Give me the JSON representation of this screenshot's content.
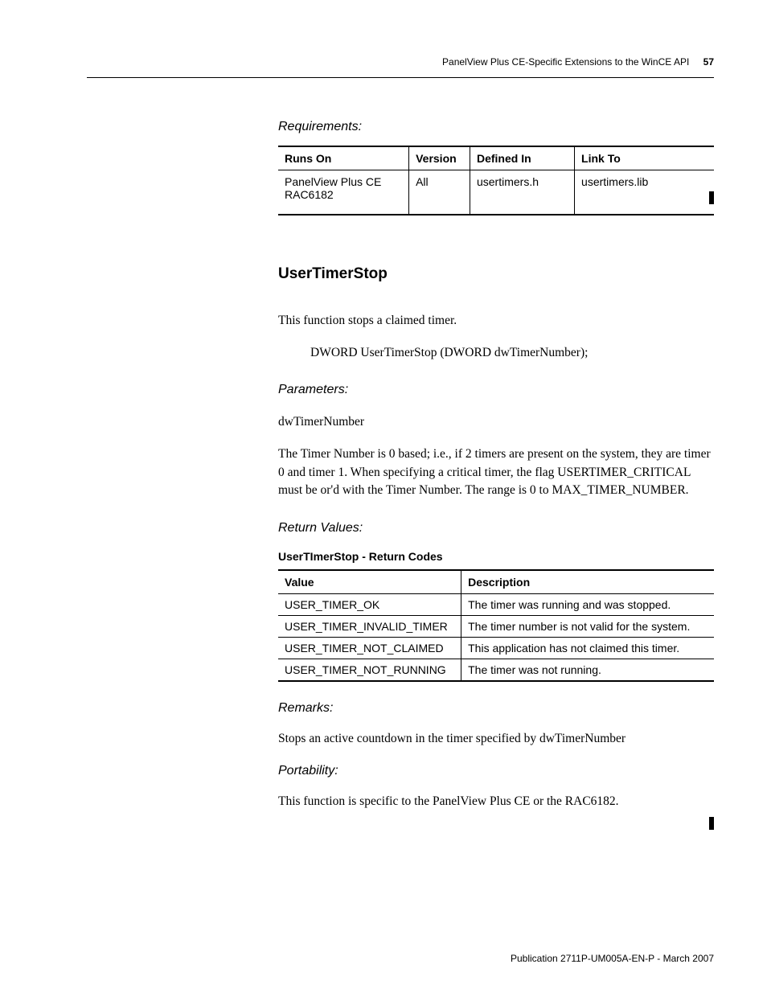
{
  "header": {
    "title": "PanelView Plus CE-Specific Extensions to the WinCE API",
    "page_number": "57"
  },
  "sections": {
    "requirements_label": "Requirements:",
    "req_table": {
      "columns": [
        "Runs On",
        "Version",
        "Defined In",
        "Link To"
      ],
      "rows": [
        [
          "PanelView Plus CE RAC6182",
          "All",
          "usertimers.h",
          "usertimers.lib"
        ]
      ]
    },
    "fn_heading": "UserTimerStop",
    "fn_intro": "This function stops a claimed timer.",
    "fn_sig": "DWORD UserTimerStop (DWORD dwTimerNumber);",
    "parameters_label": "Parameters:",
    "param_name": "dwTimerNumber",
    "param_desc": "The Timer Number is 0 based; i.e., if 2 timers are present on the system, they are timer 0 and timer 1. When specifying a critical timer, the flag USERTIMER_CRITICAL must be or'd with the Timer Number. The range is 0 to MAX_TIMER_NUMBER.",
    "return_label": "Return Values:",
    "rc_caption": "UserTImerStop - Return Codes",
    "rc_table": {
      "columns": [
        "Value",
        "Description"
      ],
      "rows": [
        [
          "USER_TIMER_OK",
          "The timer was running and was stopped."
        ],
        [
          "USER_TIMER_INVALID_TIMER",
          "The timer number is not valid for the system."
        ],
        [
          "USER_TIMER_NOT_CLAIMED",
          "This application has not claimed this timer."
        ],
        [
          "USER_TIMER_NOT_RUNNING",
          "The timer was not running."
        ]
      ]
    },
    "remarks_label": "Remarks:",
    "remarks_text": "Stops an active countdown in the timer specified by dwTimerNumber",
    "portability_label": "Portability:",
    "portability_text": "This function is specific to the PanelView Plus CE or the RAC6182."
  },
  "footer": {
    "text": "Publication 2711P-UM005A-EN-P - March 2007"
  }
}
